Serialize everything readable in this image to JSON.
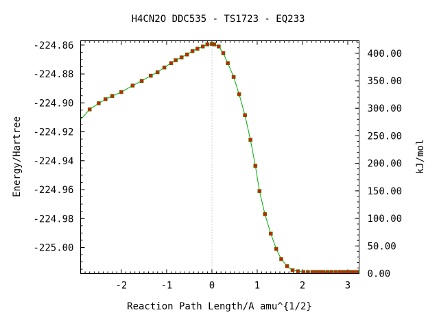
{
  "chart_data": {
    "type": "line",
    "title": "H4CN2O   DDC535 - TS1723 - EQ233",
    "xlabel": "Reaction Path Length/A amu^{1/2}",
    "ylabel": "Energy/Hartree",
    "y2label": "kJ/mol",
    "xlim": [
      -2.9,
      3.25
    ],
    "ylim": [
      -225.018,
      -224.857
    ],
    "y2lim": [
      0.0,
      422.7
    ],
    "x_ticks": [
      -2,
      -1,
      0,
      1,
      2,
      3
    ],
    "x_tick_labels": [
      "-2",
      "-1",
      "0",
      "1",
      "2",
      "3"
    ],
    "y_ticks": [
      -224.86,
      -224.88,
      -224.9,
      -224.92,
      -224.94,
      -224.96,
      -224.98,
      -225.0
    ],
    "y_tick_labels": [
      "-224.86",
      "-224.88",
      "-224.90",
      "-224.92",
      "-224.94",
      "-224.96",
      "-224.98",
      "-225.00"
    ],
    "y2_ticks": [
      400,
      350,
      300,
      250,
      200,
      150,
      100,
      50,
      0
    ],
    "y2_tick_labels": [
      "400.00",
      "350.00",
      "300.00",
      "250.00",
      "200.00",
      "150.00",
      "100.00",
      "50.00",
      "0.00"
    ],
    "transition_state_x": 0.0,
    "colors": {
      "curve": "#00aa00",
      "markers": "#cc2200",
      "ts_line": "#a0a0a0",
      "frame": "#000000"
    },
    "series": [
      {
        "x": [
          -2.9,
          -2.7,
          -2.5,
          -2.35,
          -2.2,
          -2.0,
          -1.75,
          -1.55,
          -1.35,
          -1.2,
          -1.05,
          -0.9,
          -0.8,
          -0.67,
          -0.55,
          -0.43,
          -0.32,
          -0.2,
          -0.1,
          0.0,
          0.05,
          0.15,
          0.25,
          0.35,
          0.48,
          0.6,
          0.73,
          0.85,
          0.96,
          1.05,
          1.17,
          1.3,
          1.42,
          1.53,
          1.66,
          1.78,
          1.9,
          2.02,
          2.12,
          2.22,
          2.3,
          2.38,
          2.46,
          2.55,
          2.64,
          2.73,
          2.82,
          2.9,
          2.98,
          3.05,
          3.12,
          3.2
        ],
        "y": [
          -224.9115,
          -224.9045,
          -224.9003,
          -224.8975,
          -224.8952,
          -224.8925,
          -224.888,
          -224.8848,
          -224.8812,
          -224.8788,
          -224.8755,
          -224.8725,
          -224.8705,
          -224.8685,
          -224.8665,
          -224.8642,
          -224.8625,
          -224.861,
          -224.8595,
          -224.8592,
          -224.8595,
          -224.861,
          -224.8655,
          -224.8725,
          -224.882,
          -224.894,
          -224.9085,
          -224.9255,
          -224.9435,
          -224.961,
          -224.977,
          -224.9905,
          -225.001,
          -225.008,
          -225.013,
          -225.0158,
          -225.0165,
          -225.017,
          -225.017,
          -225.017,
          -225.017,
          -225.017,
          -225.017,
          -225.017,
          -225.017,
          -225.017,
          -225.017,
          -225.017,
          -225.017,
          -225.017,
          -225.017,
          -225.017
        ]
      }
    ]
  }
}
